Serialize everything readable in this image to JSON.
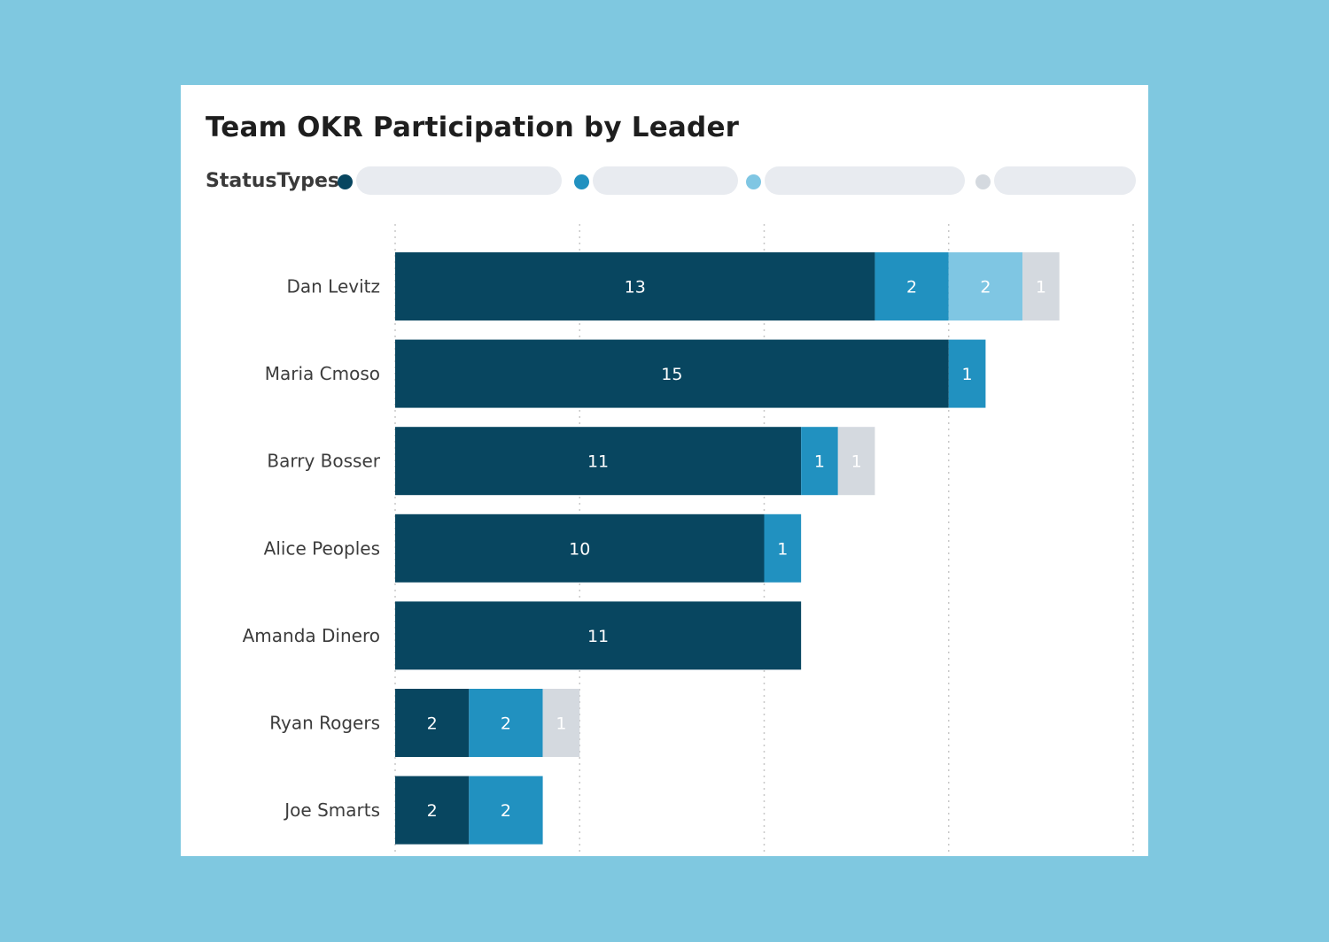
{
  "chart_data": {
    "type": "bar",
    "orientation": "horizontal",
    "stacked": true,
    "title": "Team OKR Participation by Leader",
    "legend": {
      "title": "StatusTypes",
      "placement": "top-left",
      "entries": [
        {
          "color": "#084660"
        },
        {
          "color": "#2191c0"
        },
        {
          "color": "#7fc6e3"
        },
        {
          "color": "#d4d9df"
        }
      ]
    },
    "categories": [
      "Dan Levitz",
      "Maria Cmoso",
      "Barry Bosser",
      "Alice Peoples",
      "Amanda Dinero",
      "Ryan Rogers",
      "Joe Smarts"
    ],
    "series": [
      {
        "color": "#084660",
        "values": [
          13,
          15,
          11,
          10,
          11,
          2,
          2
        ]
      },
      {
        "color": "#2191c0",
        "values": [
          2,
          1,
          1,
          1,
          0,
          2,
          2
        ]
      },
      {
        "color": "#7fc6e3",
        "values": [
          2,
          0,
          0,
          0,
          0,
          0,
          0
        ]
      },
      {
        "color": "#d4d9df",
        "values": [
          1,
          0,
          1,
          0,
          0,
          1,
          0
        ]
      }
    ],
    "xlim": [
      0,
      20
    ],
    "grid": true
  }
}
